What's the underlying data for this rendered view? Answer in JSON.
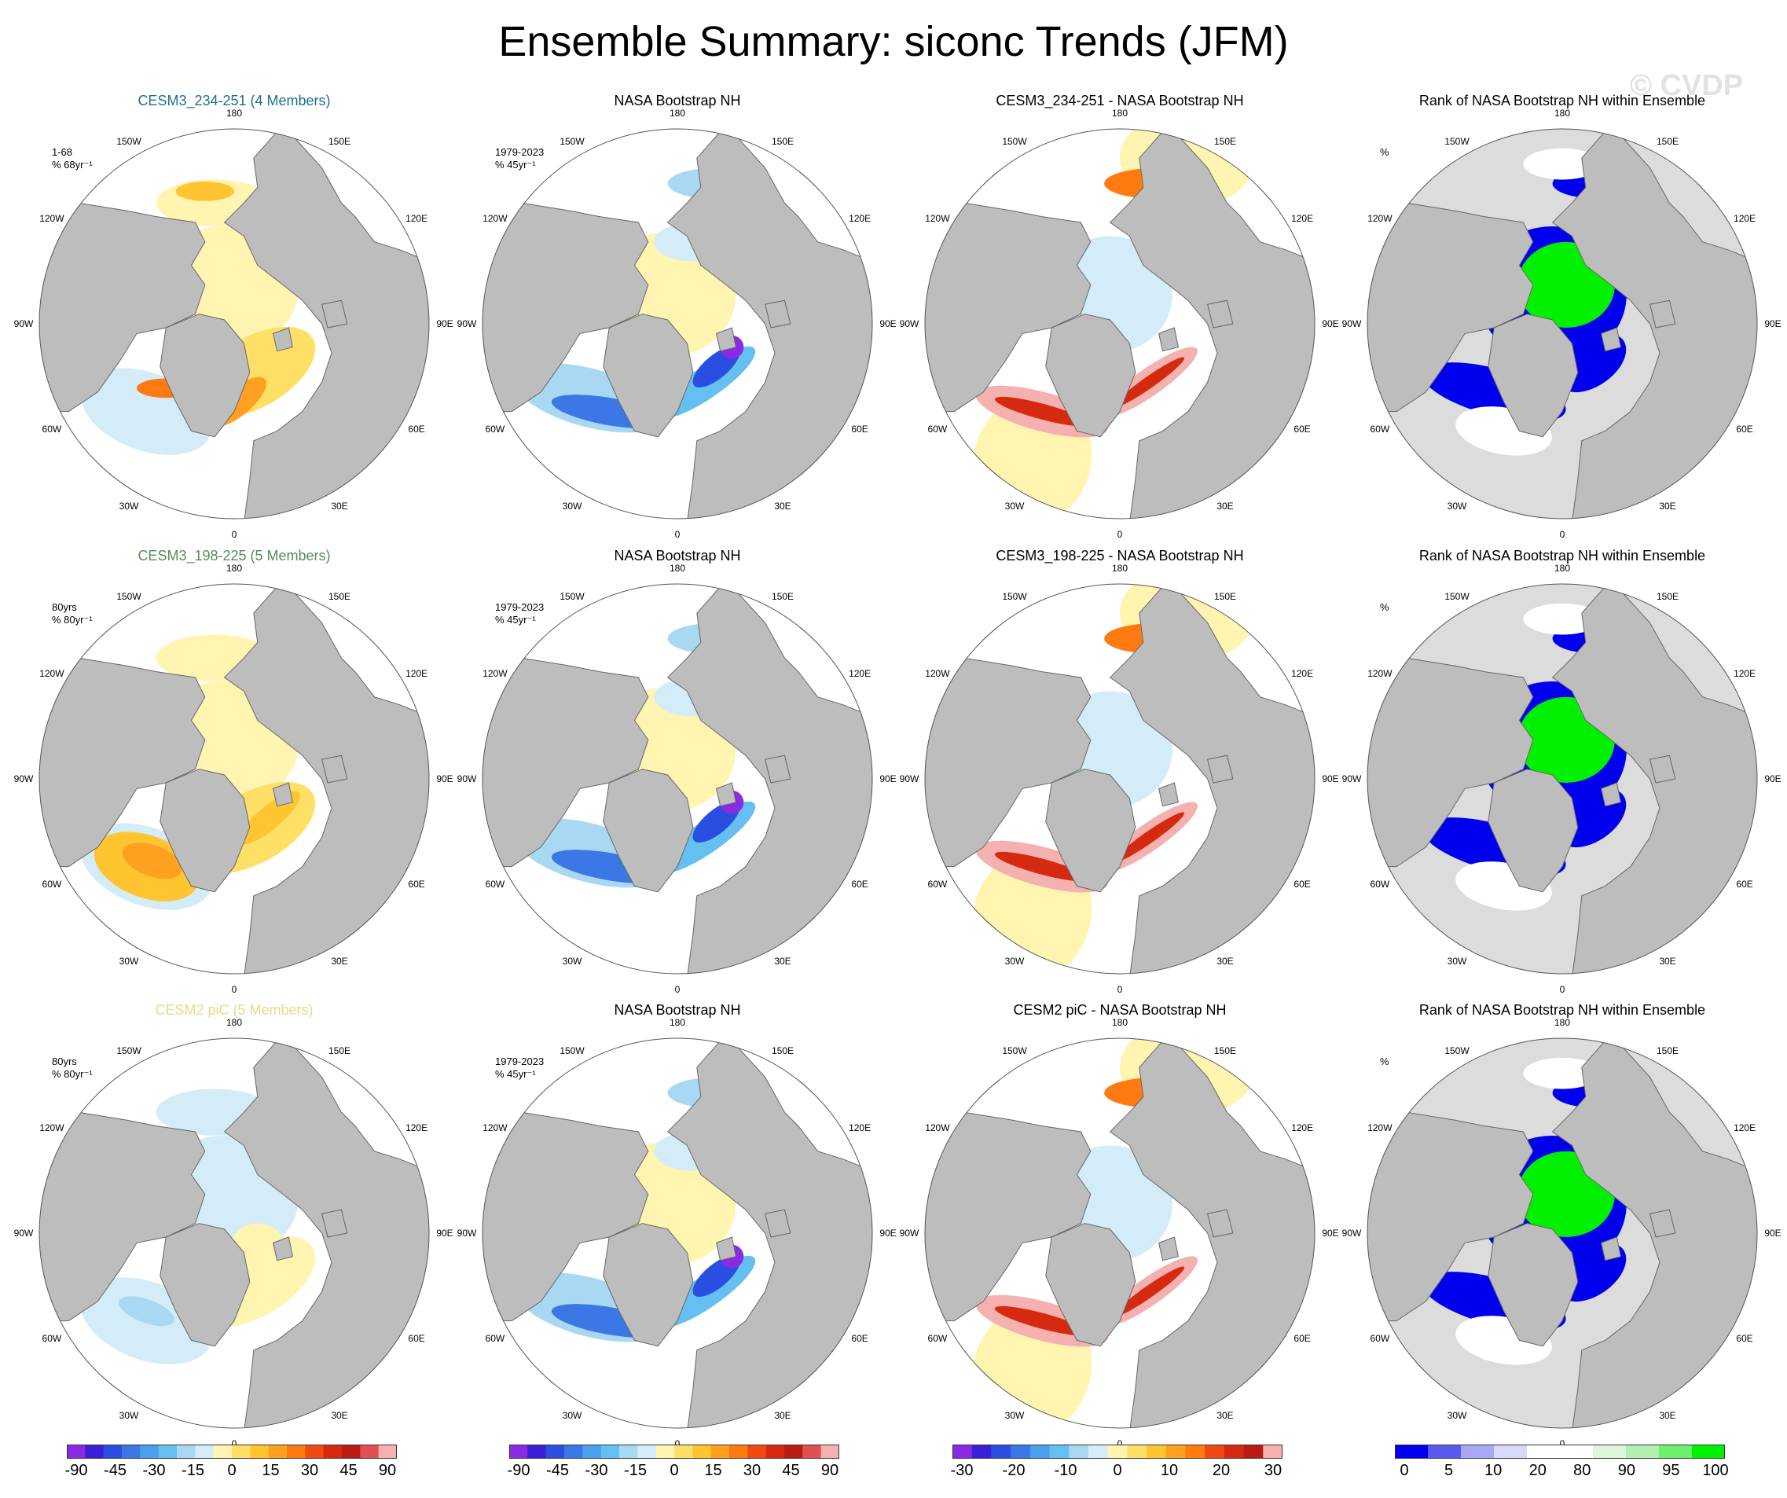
{
  "title": "Ensemble Summary: siconc Trends (JFM)",
  "watermark": "© CVDP",
  "colors": {
    "land": "#bdbdbd",
    "land_outline": "#666666",
    "ocean_rank_bg": "#dcdcdc",
    "model1_title": "#1f6e8c",
    "model2_title": "#5a8a5a",
    "model3_title": "#e8d98a"
  },
  "rows": [
    {
      "panels": [
        {
          "title": "CESM3_234-251 (4 Members)",
          "title_color": "#1f6e8c",
          "label_line1": "1-68",
          "label_line2": "% 68yr⁻¹",
          "kind": "model"
        },
        {
          "title": "NASA Bootstrap NH",
          "label_line1": "1979-2023",
          "label_line2": "% 45yr⁻¹",
          "kind": "obs"
        },
        {
          "title": "CESM3_234-251 - NASA Bootstrap NH",
          "label_line1": "",
          "label_line2": "",
          "kind": "diff"
        },
        {
          "title": "Rank of NASA Bootstrap NH within Ensemble",
          "label_line1": "%",
          "label_line2": "",
          "kind": "rank"
        }
      ]
    },
    {
      "panels": [
        {
          "title": "CESM3_198-225 (5 Members)",
          "title_color": "#5a8a5a",
          "label_line1": "80yrs",
          "label_line2": "% 80yr⁻¹",
          "kind": "model"
        },
        {
          "title": "NASA Bootstrap NH",
          "label_line1": "1979-2023",
          "label_line2": "% 45yr⁻¹",
          "kind": "obs"
        },
        {
          "title": "CESM3_198-225 - NASA Bootstrap NH",
          "label_line1": "",
          "label_line2": "",
          "kind": "diff"
        },
        {
          "title": "Rank of NASA Bootstrap NH within Ensemble",
          "label_line1": "%",
          "label_line2": "",
          "kind": "rank"
        }
      ]
    },
    {
      "panels": [
        {
          "title": "CESM2 piC (5 Members)",
          "title_color": "#e8d98a",
          "label_line1": "80yrs",
          "label_line2": "% 80yr⁻¹",
          "kind": "model"
        },
        {
          "title": "NASA Bootstrap NH",
          "label_line1": "1979-2023",
          "label_line2": "% 45yr⁻¹",
          "kind": "obs"
        },
        {
          "title": "CESM2 piC - NASA Bootstrap NH",
          "label_line1": "",
          "label_line2": "",
          "kind": "diff"
        },
        {
          "title": "Rank of NASA Bootstrap NH within Ensemble",
          "label_line1": "%",
          "label_line2": "",
          "kind": "rank"
        }
      ]
    }
  ],
  "longitude_labels": [
    "180",
    "150E",
    "120E",
    "90E",
    "60E",
    "30E",
    "0",
    "30W",
    "60W",
    "90W",
    "120W",
    "150W"
  ],
  "colorbars": [
    {
      "name": "trend",
      "colors": [
        "#8a2be2",
        "#3a1fd6",
        "#2a4fe0",
        "#3b78e6",
        "#4aa0ea",
        "#63c0f0",
        "#a9d8f2",
        "#d4ecf7",
        "#fff4b0",
        "#ffe066",
        "#ffc530",
        "#ffa020",
        "#ff7a10",
        "#f04a10",
        "#d62a10",
        "#b81c14",
        "#e05050",
        "#f5b0b0"
      ],
      "tick_labels": [
        "-90",
        "-45",
        "-30",
        "-15",
        "0",
        "15",
        "30",
        "45",
        "90"
      ]
    },
    {
      "name": "trend-obs",
      "colors": [
        "#8a2be2",
        "#3a1fd6",
        "#2a4fe0",
        "#3b78e6",
        "#4aa0ea",
        "#63c0f0",
        "#a9d8f2",
        "#d4ecf7",
        "#fff4b0",
        "#ffe066",
        "#ffc530",
        "#ffa020",
        "#ff7a10",
        "#f04a10",
        "#d62a10",
        "#b81c14",
        "#e05050",
        "#f5b0b0"
      ],
      "tick_labels": [
        "-90",
        "-45",
        "-30",
        "-15",
        "0",
        "15",
        "30",
        "45",
        "90"
      ]
    },
    {
      "name": "difference",
      "colors": [
        "#8a2be2",
        "#3a1fd6",
        "#2a4fe0",
        "#3b78e6",
        "#4aa0ea",
        "#63c0f0",
        "#a9d8f2",
        "#d4ecf7",
        "#fff4b0",
        "#ffe066",
        "#ffc530",
        "#ffa020",
        "#ff7a10",
        "#f04a10",
        "#d62a10",
        "#b81c14",
        "#f5b0b0"
      ],
      "tick_labels": [
        "-30",
        "-20",
        "-10",
        "0",
        "10",
        "20",
        "30"
      ]
    },
    {
      "name": "rank",
      "colors": [
        "#0000ee",
        "#5a5af0",
        "#a8a8f4",
        "#d8d8fa",
        "#ffffff",
        "#ffffff",
        "#dcf7dc",
        "#b2f0b2",
        "#6df06d",
        "#00f000"
      ],
      "tick_labels": [
        "0",
        "5",
        "10",
        "20",
        "80",
        "90",
        "95",
        "100"
      ]
    }
  ]
}
